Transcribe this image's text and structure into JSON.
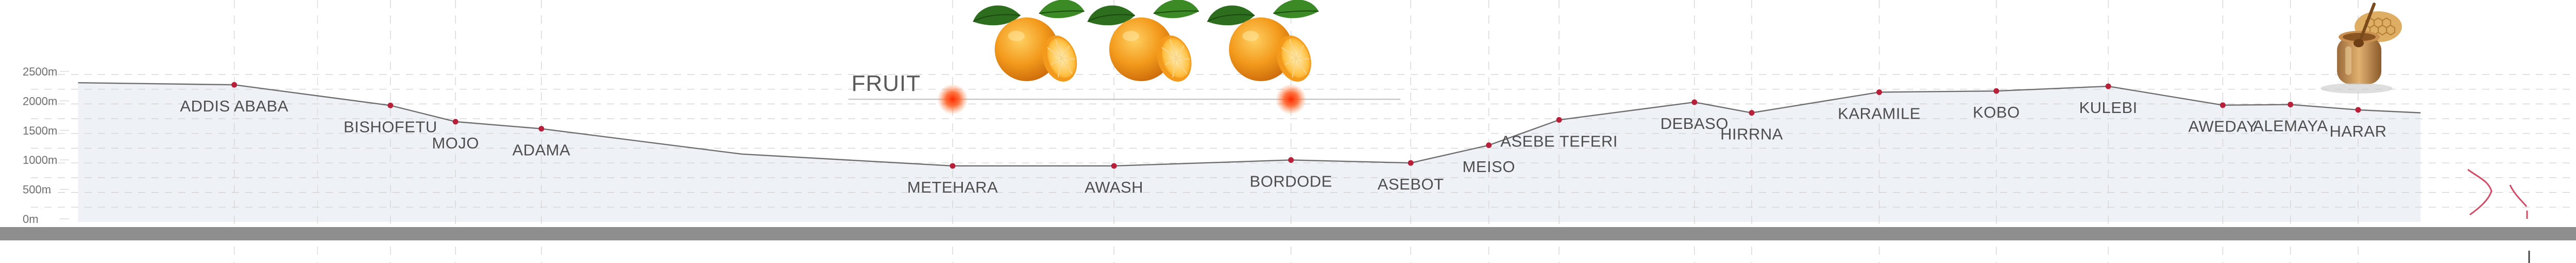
{
  "chart_data": {
    "type": "area",
    "ylim": [
      0,
      2700
    ],
    "y_ticks": [
      {
        "value": 0,
        "label": "0m"
      },
      {
        "value": 500,
        "label": "500m"
      },
      {
        "value": 1000,
        "label": "1000m"
      },
      {
        "value": 1500,
        "label": "1500m"
      },
      {
        "value": 2000,
        "label": "2000m"
      },
      {
        "value": 2500,
        "label": "2500m"
      }
    ],
    "grid": "dashed",
    "route_points": [
      {
        "x": 0,
        "elevation": 2360
      },
      {
        "x": 9.0,
        "elevation": 2325
      },
      {
        "x": 15.0,
        "elevation": 1975
      },
      {
        "x": 17.5,
        "elevation": 1700
      },
      {
        "x": 20.8,
        "elevation": 1580
      },
      {
        "x": 28.5,
        "elevation": 1150
      },
      {
        "x": 36.6,
        "elevation": 950
      },
      {
        "x": 42.8,
        "elevation": 950
      },
      {
        "x": 49.6,
        "elevation": 1050
      },
      {
        "x": 54.2,
        "elevation": 1000
      },
      {
        "x": 57.2,
        "elevation": 1300
      },
      {
        "x": 59.9,
        "elevation": 1730
      },
      {
        "x": 65.1,
        "elevation": 2030
      },
      {
        "x": 67.3,
        "elevation": 1850
      },
      {
        "x": 72.2,
        "elevation": 2200
      },
      {
        "x": 76.7,
        "elevation": 2220
      },
      {
        "x": 81.0,
        "elevation": 2300
      },
      {
        "x": 85.4,
        "elevation": 1980
      },
      {
        "x": 88.0,
        "elevation": 1990
      },
      {
        "x": 90.6,
        "elevation": 1900
      },
      {
        "x": 93.0,
        "elevation": 1850
      }
    ],
    "towns": [
      {
        "name": "ADDIS ABABA",
        "x": 9.0,
        "elevation": 2325,
        "label_pos": "below"
      },
      {
        "name": "BISHOFETU",
        "x": 15.0,
        "elevation": 1975,
        "label_pos": "below"
      },
      {
        "name": "MOJO",
        "x": 17.5,
        "elevation": 1700,
        "label_pos": "below"
      },
      {
        "name": "ADAMA",
        "x": 20.8,
        "elevation": 1580,
        "label_pos": "below"
      },
      {
        "name": "METEHARA",
        "x": 36.6,
        "elevation": 950,
        "label_pos": "below"
      },
      {
        "name": "AWASH",
        "x": 42.8,
        "elevation": 950,
        "label_pos": "below"
      },
      {
        "name": "BORDODE",
        "x": 49.6,
        "elevation": 1050,
        "label_pos": "below"
      },
      {
        "name": "ASEBOT",
        "x": 54.2,
        "elevation": 1000,
        "label_pos": "below"
      },
      {
        "name": "MEISO",
        "x": 57.2,
        "elevation": 1300,
        "label_pos": "below"
      },
      {
        "name": "ASEBE TEFERI",
        "x": 59.9,
        "elevation": 1730,
        "label_pos": "below"
      },
      {
        "name": "DEBASO",
        "x": 65.1,
        "elevation": 2030,
        "label_pos": "below"
      },
      {
        "name": "HIRRNA",
        "x": 67.3,
        "elevation": 1850,
        "label_pos": "below"
      },
      {
        "name": "KARAMILE",
        "x": 72.2,
        "elevation": 2200,
        "label_pos": "below"
      },
      {
        "name": "KOBO",
        "x": 76.7,
        "elevation": 2220,
        "label_pos": "below"
      },
      {
        "name": "KULEBI",
        "x": 81.0,
        "elevation": 2300,
        "label_pos": "below"
      },
      {
        "name": "AWEDAY",
        "x": 85.4,
        "elevation": 1980,
        "label_pos": "below"
      },
      {
        "name": "ALEMAYA",
        "x": 88.0,
        "elevation": 1990,
        "label_pos": "below"
      },
      {
        "name": "HARAR",
        "x": 90.6,
        "elevation": 1900,
        "label_pos": "below"
      }
    ],
    "annotations": [
      {
        "text": "FRUIT",
        "x_start": 32.0,
        "x_end": 53.8,
        "elevation": 2080,
        "markers_at": [
          36.6,
          49.6
        ]
      }
    ],
    "decorations": [
      {
        "kind": "orange-icon",
        "x": 39.8
      },
      {
        "kind": "orange-icon",
        "x": 44.2
      },
      {
        "kind": "orange-icon",
        "x": 48.8
      },
      {
        "kind": "honey-jar-icon",
        "x": 90.7
      }
    ],
    "colors": {
      "line": "#6e6e6e",
      "point": "#b8203a",
      "area": "#eef1f6",
      "grid": "#cfcfcf",
      "baseline_bar": "#8e8e8e",
      "marker_glow": "#f0401e",
      "orange": "#f39a1c",
      "leaf": "#2d6e1e",
      "honey": "#d08a2a"
    }
  }
}
